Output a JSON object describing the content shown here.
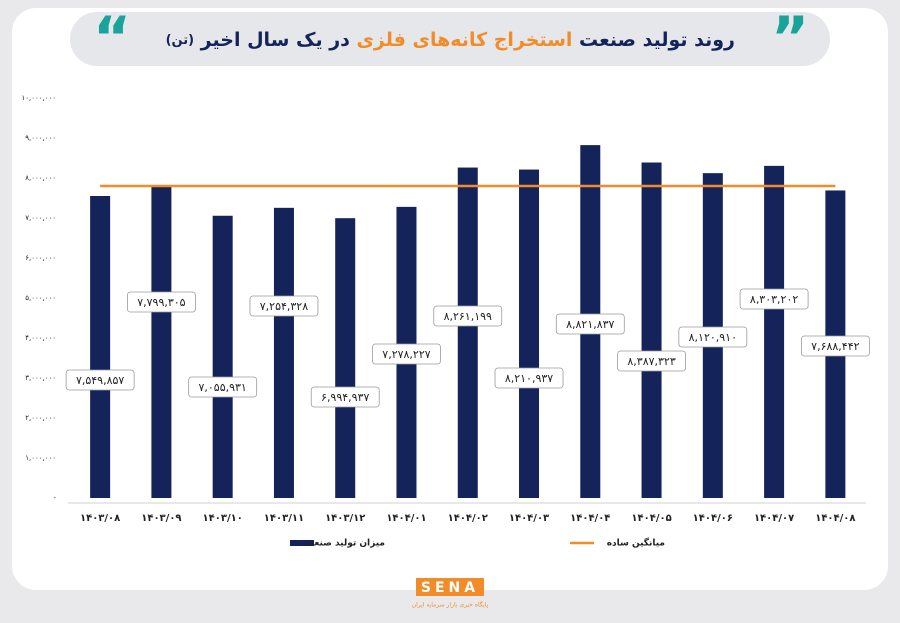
{
  "chart_data": {
    "type": "bar",
    "title": [
      "روند تولید صنعت",
      "استخراج کانه‌های فلزی",
      "در یک سال اخیر",
      "(تن)"
    ],
    "categories": [
      "۱۴۰۳/۰۸",
      "۱۴۰۳/۰۹",
      "۱۴۰۳/۱۰",
      "۱۴۰۳/۱۱",
      "۱۴۰۳/۱۲",
      "۱۴۰۴/۰۱",
      "۱۴۰۴/۰۲",
      "۱۴۰۴/۰۳",
      "۱۴۰۴/۰۴",
      "۱۴۰۴/۰۵",
      "۱۴۰۴/۰۶",
      "۱۴۰۴/۰۷",
      "۱۴۰۴/۰۸"
    ],
    "series": [
      {
        "name": "میزان تولید صنعت",
        "type": "bar",
        "color": "#14235a",
        "values": [
          7549857,
          7799305,
          7055931,
          7254328,
          6994937,
          7278227,
          8261199,
          8210937,
          8821837,
          8387323,
          8120910,
          8303202,
          7688442
        ],
        "value_labels": [
          "۷,۵۴۹,۸۵۷",
          "۷,۷۹۹,۳۰۵",
          "۷,۰۵۵,۹۳۱",
          "۷,۲۵۴,۳۲۸",
          "۶,۹۹۴,۹۳۷",
          "۷,۲۷۸,۲۲۷",
          "۸,۲۶۱,۱۹۹",
          "۸,۲۱۰,۹۳۷",
          "۸,۸۲۱,۸۳۷",
          "۸,۳۸۷,۳۲۳",
          "۸,۱۲۰,۹۱۰",
          "۸,۳۰۳,۲۰۲",
          "۷,۶۸۸,۴۴۲"
        ]
      },
      {
        "name": "میانگین ساده",
        "type": "line",
        "color": "#f28c28",
        "values": [
          7800000,
          7800000,
          7800000,
          7800000,
          7800000,
          7800000,
          7800000,
          7800000,
          7800000,
          7800000,
          7800000,
          7800000,
          7800000
        ]
      }
    ],
    "ylim": [
      0,
      10000000
    ],
    "yticks": [
      {
        "value": 0,
        "label": "-"
      },
      {
        "value": 1000000,
        "label": "۱,۰۰۰,۰۰۰"
      },
      {
        "value": 2000000,
        "label": "۲,۰۰۰,۰۰۰"
      },
      {
        "value": 3000000,
        "label": "۳,۰۰۰,۰۰۰"
      },
      {
        "value": 4000000,
        "label": "۴,۰۰۰,۰۰۰"
      },
      {
        "value": 5000000,
        "label": "۵,۰۰۰,۰۰۰"
      },
      {
        "value": 6000000,
        "label": "۶,۰۰۰,۰۰۰"
      },
      {
        "value": 7000000,
        "label": "۷,۰۰۰,۰۰۰"
      },
      {
        "value": 8000000,
        "label": "۸,۰۰۰,۰۰۰"
      },
      {
        "value": 9000000,
        "label": "۹,۰۰۰,۰۰۰"
      },
      {
        "value": 10000000,
        "label": "۱۰,۰۰۰,۰۰۰"
      }
    ],
    "grid": false,
    "legend": "bottom"
  },
  "logo": {
    "name": "SENA",
    "tagline": "پایگاه خبری بازار سرمایه ایران"
  }
}
